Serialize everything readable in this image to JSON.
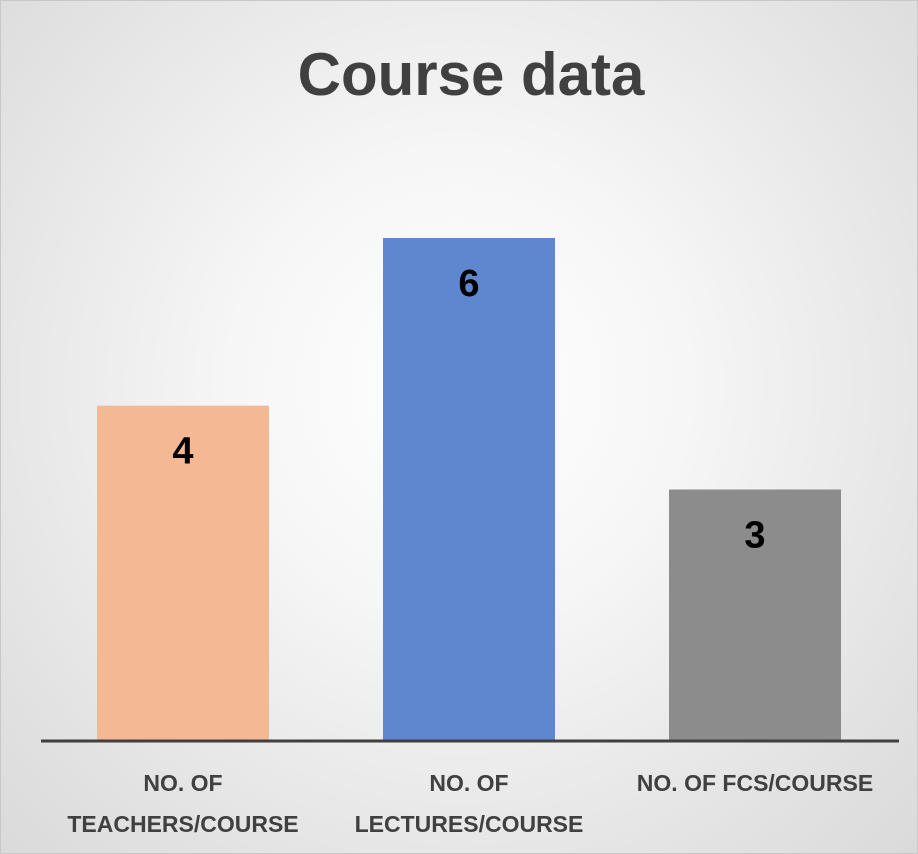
{
  "chart_data": {
    "type": "bar",
    "title": "Course data",
    "categories": [
      "NO. OF TEACHERS/COURSE",
      "NO. OF LECTURES/COURSE",
      "NO. OF FCS/COURSE"
    ],
    "values": [
      4,
      6,
      3
    ],
    "colors": [
      "#f4b994",
      "#5f87d0",
      "#8c8c8c"
    ]
  }
}
